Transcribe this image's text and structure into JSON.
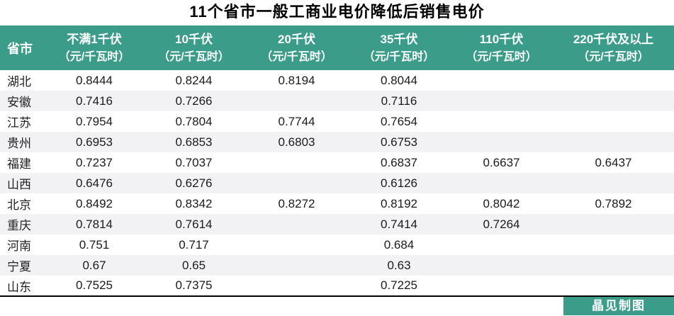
{
  "title": "11个省市一般工商业电价降低后销售电价",
  "footer": {
    "credit": "晶见制图"
  },
  "colors": {
    "accent_teal": "#3b9c8a",
    "stripe_gray": "#f2f1f3",
    "title_black": "#000000"
  },
  "table": {
    "row_header": "省市",
    "columns": [
      {
        "label": "不满1千伏",
        "unit": "（元/千瓦时）"
      },
      {
        "label": "10千伏",
        "unit": "（元/千瓦时）"
      },
      {
        "label": "20千伏",
        "unit": "（元/千瓦时）"
      },
      {
        "label": "35千伏",
        "unit": "（元/千瓦时）"
      },
      {
        "label": "110千伏",
        "unit": "（元/千瓦时）"
      },
      {
        "label": "220千伏及以上",
        "unit": "（元/千瓦时）"
      }
    ],
    "rows": [
      {
        "province": "湖北",
        "values": [
          "0.8444",
          "0.8244",
          "0.8194",
          "0.8044",
          "",
          ""
        ]
      },
      {
        "province": "安徽",
        "values": [
          "0.7416",
          "0.7266",
          "",
          "0.7116",
          "",
          ""
        ]
      },
      {
        "province": "江苏",
        "values": [
          "0.7954",
          "0.7804",
          "0.7744",
          "0.7654",
          "",
          ""
        ]
      },
      {
        "province": "贵州",
        "values": [
          "0.6953",
          "0.6853",
          "0.6803",
          "0.6753",
          "",
          ""
        ]
      },
      {
        "province": "福建",
        "values": [
          "0.7237",
          "0.7037",
          "",
          "0.6837",
          "0.6637",
          "0.6437"
        ]
      },
      {
        "province": "山西",
        "values": [
          "0.6476",
          "0.6276",
          "",
          "0.6126",
          "",
          ""
        ]
      },
      {
        "province": "北京",
        "values": [
          "0.8492",
          "0.8342",
          "0.8272",
          "0.8192",
          "0.8042",
          "0.7892"
        ]
      },
      {
        "province": "重庆",
        "values": [
          "0.7814",
          "0.7614",
          "",
          "0.7414",
          "0.7264",
          ""
        ]
      },
      {
        "province": "河南",
        "values": [
          "0.751",
          "0.717",
          "",
          "0.684",
          "",
          ""
        ]
      },
      {
        "province": "宁夏",
        "values": [
          "0.67",
          "0.65",
          "",
          "0.63",
          "",
          ""
        ]
      },
      {
        "province": "山东",
        "values": [
          "0.7525",
          "0.7375",
          "",
          "0.7225",
          "",
          ""
        ]
      }
    ]
  },
  "chart_data": {
    "type": "table",
    "title": "11个省市一般工商业电价降低后销售电价",
    "row_header": "省市",
    "columns": [
      "不满1千伏（元/千瓦时）",
      "10千伏（元/千瓦时）",
      "20千伏（元/千瓦时）",
      "35千伏（元/千瓦时）",
      "110千伏（元/千瓦时）",
      "220千伏及以上（元/千瓦时）"
    ],
    "categories": [
      "湖北",
      "安徽",
      "江苏",
      "贵州",
      "福建",
      "山西",
      "北京",
      "重庆",
      "河南",
      "宁夏",
      "山东"
    ],
    "values": [
      [
        0.8444,
        0.8244,
        0.8194,
        0.8044,
        null,
        null
      ],
      [
        0.7416,
        0.7266,
        null,
        0.7116,
        null,
        null
      ],
      [
        0.7954,
        0.7804,
        0.7744,
        0.7654,
        null,
        null
      ],
      [
        0.6953,
        0.6853,
        0.6803,
        0.6753,
        null,
        null
      ],
      [
        0.7237,
        0.7037,
        null,
        0.6837,
        0.6637,
        0.6437
      ],
      [
        0.6476,
        0.6276,
        null,
        0.6126,
        null,
        null
      ],
      [
        0.8492,
        0.8342,
        0.8272,
        0.8192,
        0.8042,
        0.7892
      ],
      [
        0.7814,
        0.7614,
        null,
        0.7414,
        0.7264,
        null
      ],
      [
        0.751,
        0.717,
        null,
        0.684,
        null,
        null
      ],
      [
        0.67,
        0.65,
        null,
        0.63,
        null,
        null
      ],
      [
        0.7525,
        0.7375,
        null,
        0.7225,
        null,
        null
      ]
    ]
  }
}
